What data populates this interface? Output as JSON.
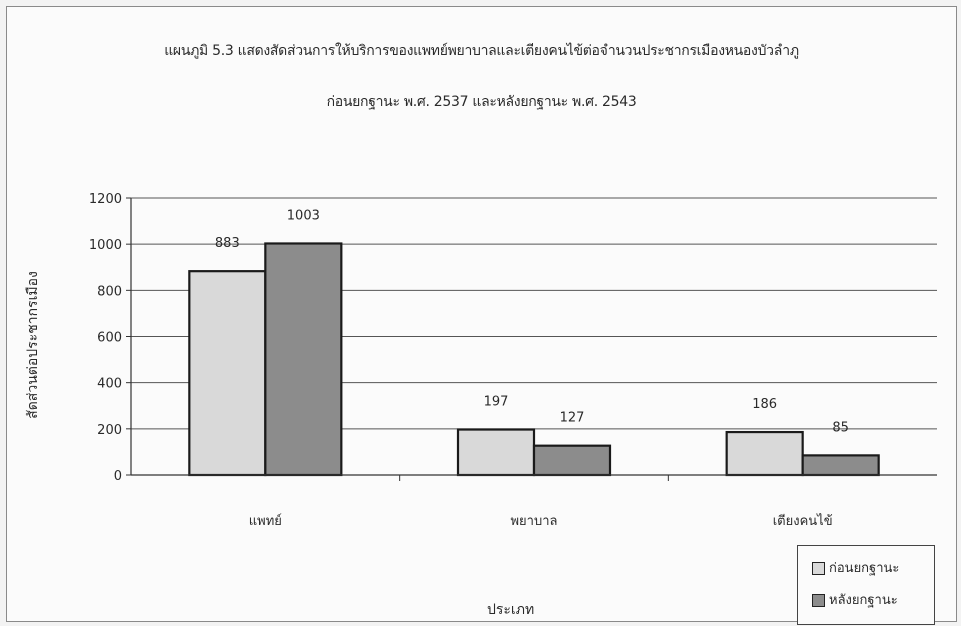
{
  "chart_data": {
    "type": "bar",
    "title": "แผนภูมิ 5.3 แสดงสัดส่วนการให้บริการของแพทย์พยาบาลและเตียงคนไข้ต่อจำนวนประชากรเมืองหนองบัวลำภู",
    "subtitle": "ก่อนยกฐานะ พ.ศ. 2537 และหลังยกฐานะ พ.ศ. 2543",
    "xlabel": "ประเภท",
    "ylabel": "สัดส่วนต่อประชากรเมือง",
    "categories": [
      "แพทย์",
      "พยาบาล",
      "เตียงคนไข้"
    ],
    "series": [
      {
        "name": "ก่อนยกฐานะ",
        "values": [
          883,
          197,
          186
        ],
        "color": "#d9d9d9"
      },
      {
        "name": "หลังยกฐานะ",
        "values": [
          1003,
          127,
          85
        ],
        "color": "#8c8c8c"
      }
    ],
    "ylim": [
      0,
      1200
    ],
    "yticks": [
      0,
      200,
      400,
      600,
      800,
      1000,
      1200
    ],
    "grid": true,
    "legend": "bottom-right"
  }
}
